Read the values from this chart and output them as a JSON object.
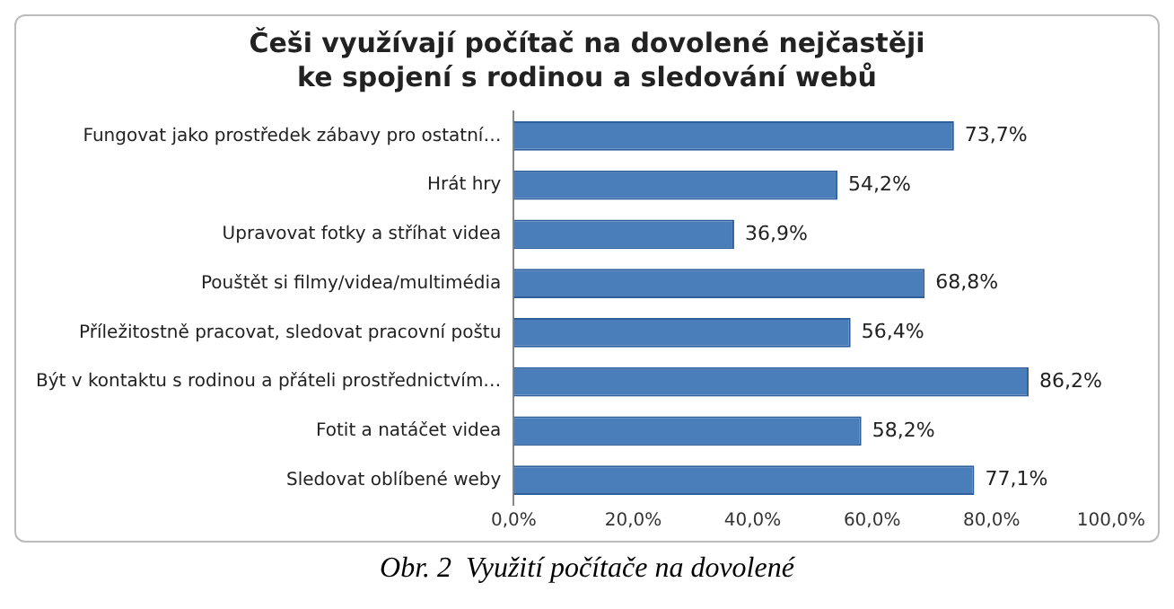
{
  "chart_data": {
    "type": "bar",
    "orientation": "horizontal",
    "title": "Češi využívají počítač na dovolené nejčastěji\nke spojení s rodinou a sledování webů",
    "categories": [
      "Fungovat jako prostředek zábavy pro ostatní…",
      "Hrát hry",
      "Upravovat fotky a stříhat videa",
      "Pouštět si filmy/videa/multimédia",
      "Příležitostně pracovat, sledovat pracovní poštu",
      "Být v kontaktu s rodinou a přáteli prostřednictvím…",
      "Fotit a natáčet videa",
      "Sledovat oblíbené weby"
    ],
    "values": [
      73.7,
      54.2,
      36.9,
      68.8,
      56.4,
      86.2,
      58.2,
      77.1
    ],
    "value_labels": [
      "73,7%",
      "54,2%",
      "36,9%",
      "68,8%",
      "56,4%",
      "86,2%",
      "58,2%",
      "77,1%"
    ],
    "color": "#4a7ebb",
    "xlim": [
      0,
      100
    ],
    "xticks": [
      {
        "value": 0,
        "label": "0,0%"
      },
      {
        "value": 20,
        "label": "20,0%"
      },
      {
        "value": 40,
        "label": "40,0%"
      },
      {
        "value": 60,
        "label": "60,0%"
      },
      {
        "value": 80,
        "label": "80,0%"
      },
      {
        "value": 100,
        "label": "100,0%"
      }
    ],
    "grid": false,
    "legend": false,
    "annotations": [
      "Obr. 2  Využití počítače na dovolené"
    ]
  }
}
